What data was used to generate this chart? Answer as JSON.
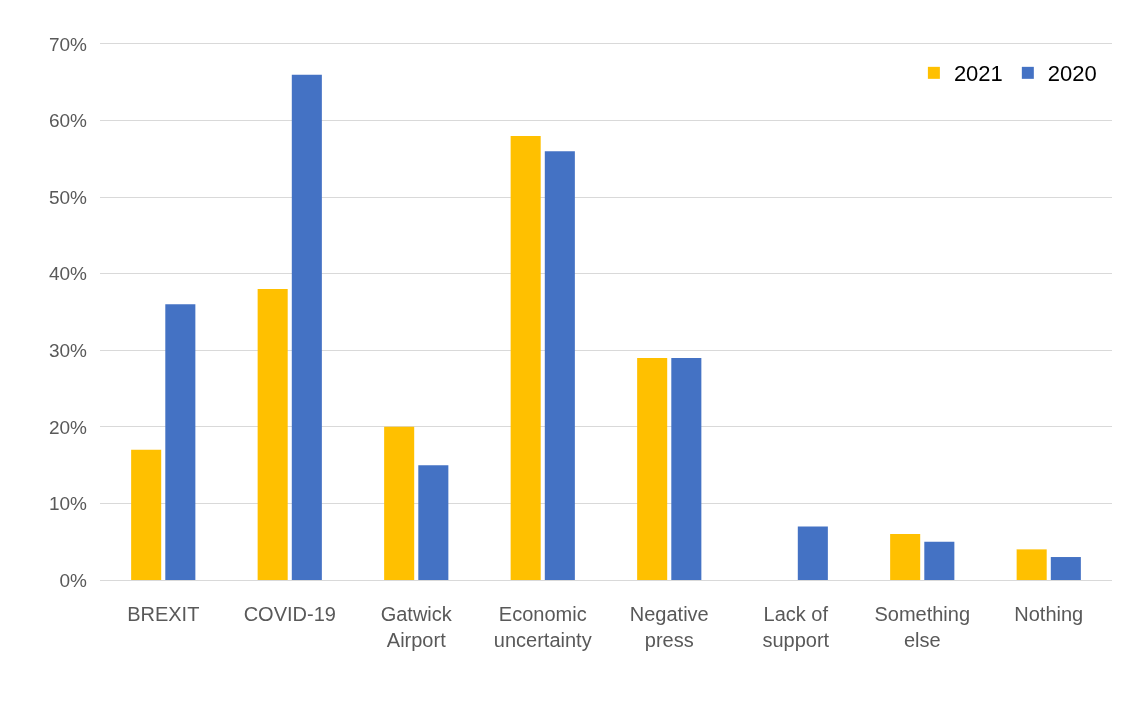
{
  "chart_data": {
    "type": "bar",
    "categories": [
      "BREXIT",
      "COVID-19",
      "Gatwick Airport",
      "Economic uncertainty",
      "Negative press",
      "Lack of support",
      "Something else",
      "Nothing"
    ],
    "series": [
      {
        "name": "2021",
        "color": "#ffc000",
        "values": [
          17,
          38,
          20,
          58,
          29,
          null,
          6,
          4
        ]
      },
      {
        "name": "2020",
        "color": "#4472c4",
        "values": [
          36,
          66,
          15,
          56,
          29,
          7,
          5,
          3
        ]
      }
    ],
    "ylim": [
      0,
      70
    ],
    "yticks": [
      {
        "value": 0,
        "label": "0%"
      },
      {
        "value": 10,
        "label": "10%"
      },
      {
        "value": 20,
        "label": "20%"
      },
      {
        "value": 30,
        "label": "30%"
      },
      {
        "value": 40,
        "label": "40%"
      },
      {
        "value": 50,
        "label": "50%"
      },
      {
        "value": 60,
        "label": "60%"
      },
      {
        "value": 70,
        "label": "70%"
      }
    ],
    "grid": "y",
    "legend": "top right"
  }
}
